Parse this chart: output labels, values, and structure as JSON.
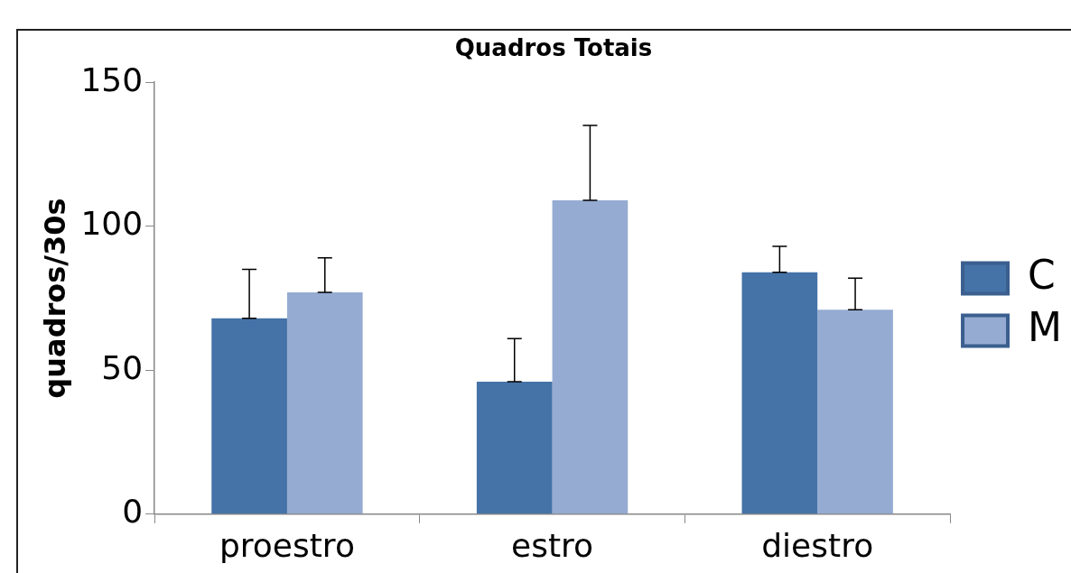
{
  "chart_data": {
    "type": "bar",
    "title": "Quadros Totais",
    "ylabel": "quadros/30s",
    "categories": [
      "proestro",
      "estro",
      "diestro"
    ],
    "series": [
      {
        "name": "C",
        "color": "#4572a7",
        "values": [
          68,
          46,
          84
        ],
        "errors": [
          [
            68,
            85
          ],
          [
            46,
            61
          ],
          [
            84,
            93
          ]
        ]
      },
      {
        "name": "M",
        "color": "#95abd2",
        "values": [
          77,
          109,
          71
        ],
        "errors": [
          [
            77,
            89
          ],
          [
            109,
            135
          ],
          [
            71,
            82
          ]
        ]
      }
    ],
    "ylim": [
      0,
      150
    ],
    "yticks": [
      0,
      50,
      100,
      150
    ],
    "grid": false,
    "legend": "right"
  }
}
